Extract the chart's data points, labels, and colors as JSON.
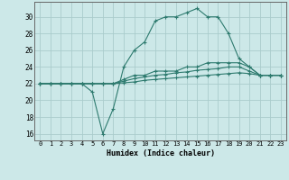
{
  "xlabel": "Humidex (Indice chaleur)",
  "bg_color": "#cce8e8",
  "grid_color": "#aacccc",
  "line_color": "#2d7a6e",
  "x_ticks": [
    0,
    1,
    2,
    3,
    4,
    5,
    6,
    7,
    8,
    9,
    10,
    11,
    12,
    13,
    14,
    15,
    16,
    17,
    18,
    19,
    20,
    21,
    22,
    23
  ],
  "y_ticks": [
    16,
    18,
    20,
    22,
    24,
    26,
    28,
    30
  ],
  "ylim": [
    15.2,
    31.8
  ],
  "xlim": [
    -0.5,
    23.5
  ],
  "series": [
    [
      22,
      22,
      22,
      22,
      22,
      21,
      16,
      19,
      24,
      26,
      27,
      29.5,
      30,
      30,
      30.5,
      31,
      30,
      30,
      28,
      25,
      24,
      23,
      23,
      23
    ],
    [
      22,
      22,
      22,
      22,
      22,
      22,
      22,
      22,
      22.5,
      23,
      23,
      23.5,
      23.5,
      23.5,
      24,
      24,
      24.5,
      24.5,
      24.5,
      24.5,
      24,
      23,
      23,
      23
    ],
    [
      22,
      22,
      22,
      22,
      22,
      22,
      22,
      22,
      22.3,
      22.6,
      22.8,
      23.0,
      23.1,
      23.3,
      23.4,
      23.6,
      23.7,
      23.8,
      24.0,
      24.0,
      23.5,
      23,
      23,
      23
    ],
    [
      22,
      22,
      22,
      22,
      22,
      22,
      22,
      22,
      22.1,
      22.2,
      22.4,
      22.5,
      22.6,
      22.7,
      22.8,
      22.9,
      23.0,
      23.1,
      23.2,
      23.3,
      23.2,
      23,
      23,
      23
    ]
  ]
}
